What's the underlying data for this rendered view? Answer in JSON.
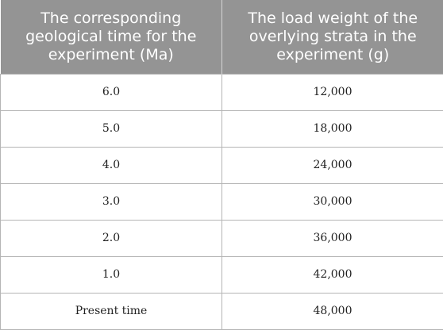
{
  "table": {
    "headers": [
      "The corresponding geological time for the experiment (Ma)",
      "The load weight of the overlying strata in the experiment (g)"
    ],
    "rows": [
      [
        "6.0",
        "12,000"
      ],
      [
        "5.0",
        "18,000"
      ],
      [
        "4.0",
        "24,000"
      ],
      [
        "3.0",
        "30,000"
      ],
      [
        "2.0",
        "36,000"
      ],
      [
        "1.0",
        "42,000"
      ],
      [
        "Present time",
        "48,000"
      ]
    ]
  },
  "colors": {
    "header_background": "#949494",
    "header_text": "#ffffff",
    "border": "#b5b5b5"
  }
}
